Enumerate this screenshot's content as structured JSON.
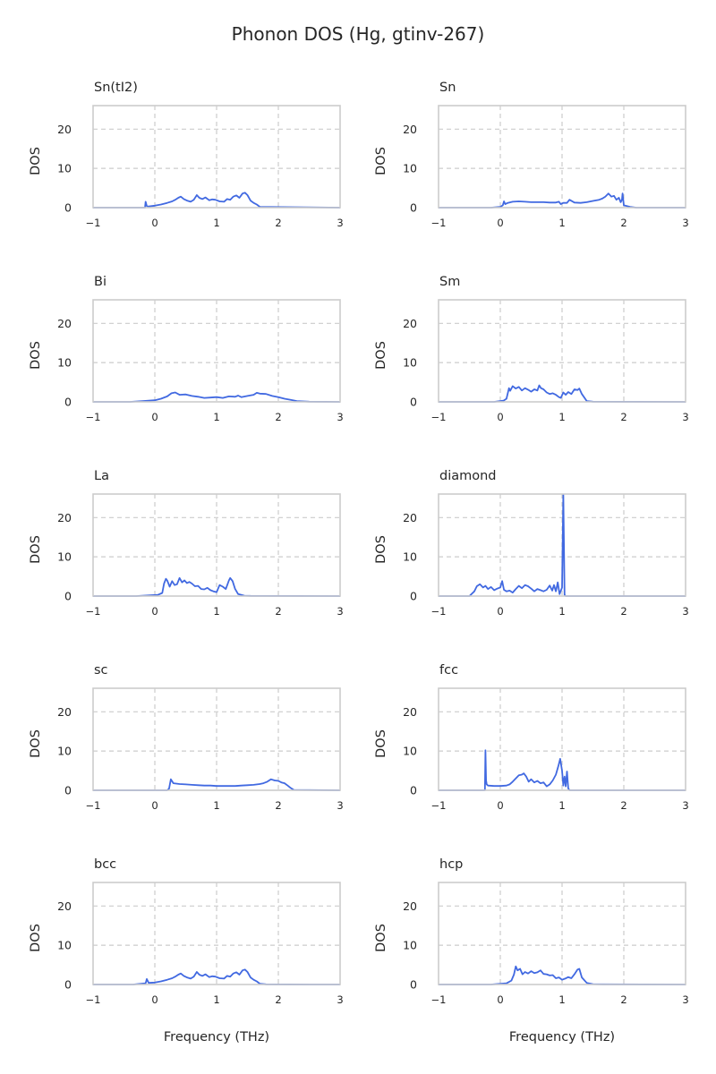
{
  "figure": {
    "title": "Phonon DOS (Hg, gtinv-267)",
    "line_color": "#4169e1",
    "axis_color": "#cccccc",
    "grid_color": "#cccccc",
    "text_color": "#262626"
  },
  "chart_data": [
    {
      "type": "line",
      "title": "Sn(tI2)",
      "xlabel": "",
      "ylabel": "DOS",
      "xlim": [
        -1,
        3
      ],
      "ylim": [
        0,
        26
      ],
      "xticks": [
        "−1",
        "0",
        "1",
        "2",
        "3"
      ],
      "yticks": [
        "0",
        "10",
        "20"
      ],
      "grid": true,
      "series": [
        {
          "x": [
            -1,
            -0.2,
            -0.16,
            -0.15,
            -0.13,
            -0.1,
            0,
            0.1,
            0.2,
            0.28,
            0.33,
            0.38,
            0.42,
            0.47,
            0.52,
            0.58,
            0.63,
            0.68,
            0.72,
            0.77,
            0.82,
            0.88,
            0.93,
            0.98,
            1.05,
            1.12,
            1.17,
            1.22,
            1.27,
            1.32,
            1.37,
            1.42,
            1.46,
            1.5,
            1.55,
            1.6,
            1.65,
            1.7,
            3
          ],
          "y": [
            0,
            0,
            0,
            1.5,
            0.4,
            0.3,
            0.5,
            0.8,
            1.2,
            1.6,
            2.0,
            2.5,
            2.8,
            2.2,
            1.8,
            1.5,
            2.0,
            3.2,
            2.5,
            2.2,
            2.6,
            1.9,
            2.1,
            2.0,
            1.6,
            1.5,
            2.2,
            2.0,
            2.8,
            3.1,
            2.5,
            3.6,
            3.8,
            3.2,
            1.8,
            1.2,
            0.8,
            0.2,
            0
          ]
        }
      ]
    },
    {
      "type": "line",
      "title": "Sn",
      "xlabel": "",
      "ylabel": "DOS",
      "xlim": [
        -1,
        3
      ],
      "ylim": [
        0,
        26
      ],
      "xticks": [
        "−1",
        "0",
        "1",
        "2",
        "3"
      ],
      "yticks": [
        "0",
        "10",
        "20"
      ],
      "grid": true,
      "series": [
        {
          "x": [
            -1,
            -0.15,
            0,
            0.04,
            0.06,
            0.08,
            0.12,
            0.2,
            0.3,
            0.4,
            0.5,
            0.6,
            0.7,
            0.8,
            0.9,
            0.95,
            0.98,
            1.02,
            1.08,
            1.12,
            1.2,
            1.3,
            1.4,
            1.5,
            1.6,
            1.65,
            1.7,
            1.75,
            1.8,
            1.84,
            1.88,
            1.92,
            1.95,
            1.97,
            1.98,
            2.0,
            2.1,
            2.2,
            3
          ],
          "y": [
            0,
            0,
            0.2,
            0.6,
            1.6,
            0.9,
            1.2,
            1.5,
            1.6,
            1.5,
            1.4,
            1.4,
            1.4,
            1.3,
            1.3,
            1.5,
            0.9,
            1.2,
            1.2,
            2.0,
            1.3,
            1.2,
            1.4,
            1.7,
            2.0,
            2.3,
            2.8,
            3.6,
            2.8,
            3.0,
            2.0,
            2.5,
            1.4,
            2.0,
            3.6,
            0.6,
            0.2,
            0,
            0
          ]
        }
      ]
    },
    {
      "type": "line",
      "title": "Bi",
      "xlabel": "",
      "ylabel": "DOS",
      "xlim": [
        -1,
        3
      ],
      "ylim": [
        0,
        26
      ],
      "xticks": [
        "−1",
        "0",
        "1",
        "2",
        "3"
      ],
      "yticks": [
        "0",
        "10",
        "20"
      ],
      "grid": true,
      "series": [
        {
          "x": [
            -1,
            -0.4,
            -0.2,
            0,
            0.1,
            0.2,
            0.27,
            0.33,
            0.4,
            0.5,
            0.6,
            0.7,
            0.8,
            0.9,
            1.0,
            1.1,
            1.2,
            1.3,
            1.35,
            1.4,
            1.5,
            1.6,
            1.65,
            1.7,
            1.8,
            1.9,
            2.0,
            2.1,
            2.2,
            2.3,
            2.5,
            3
          ],
          "y": [
            0,
            0,
            0.2,
            0.4,
            0.8,
            1.4,
            2.2,
            2.4,
            1.8,
            1.9,
            1.5,
            1.3,
            1.0,
            1.1,
            1.2,
            1.0,
            1.4,
            1.3,
            1.6,
            1.2,
            1.5,
            1.8,
            2.3,
            2.1,
            2.0,
            1.5,
            1.2,
            0.8,
            0.5,
            0.2,
            0.05,
            0
          ]
        }
      ]
    },
    {
      "type": "line",
      "title": "Sm",
      "xlabel": "",
      "ylabel": "DOS",
      "xlim": [
        -1,
        3
      ],
      "ylim": [
        0,
        26
      ],
      "xticks": [
        "−1",
        "0",
        "1",
        "2",
        "3"
      ],
      "yticks": [
        "0",
        "10",
        "20"
      ],
      "grid": true,
      "series": [
        {
          "x": [
            -1,
            -0.1,
            0.05,
            0.1,
            0.14,
            0.16,
            0.2,
            0.25,
            0.3,
            0.35,
            0.4,
            0.45,
            0.5,
            0.55,
            0.6,
            0.63,
            0.66,
            0.7,
            0.75,
            0.8,
            0.85,
            0.9,
            0.95,
            0.98,
            1.02,
            1.06,
            1.1,
            1.15,
            1.2,
            1.25,
            1.28,
            1.32,
            1.4,
            1.5,
            3
          ],
          "y": [
            0,
            0,
            0.3,
            0.8,
            3.5,
            2.8,
            4.0,
            3.4,
            3.8,
            2.9,
            3.5,
            3.1,
            2.6,
            3.2,
            2.9,
            4.2,
            3.5,
            3.2,
            2.4,
            2.0,
            2.2,
            1.8,
            1.2,
            1.0,
            2.4,
            1.8,
            2.5,
            2.0,
            3.2,
            3.0,
            3.4,
            2.0,
            0.2,
            0.05,
            0
          ]
        }
      ]
    },
    {
      "type": "line",
      "title": "La",
      "xlabel": "",
      "ylabel": "DOS",
      "xlim": [
        -1,
        3
      ],
      "ylim": [
        0,
        26
      ],
      "xticks": [
        "−1",
        "0",
        "1",
        "2",
        "3"
      ],
      "yticks": [
        "0",
        "10",
        "20"
      ],
      "grid": true,
      "series": [
        {
          "x": [
            -1,
            -0.3,
            0.05,
            0.12,
            0.15,
            0.18,
            0.2,
            0.24,
            0.28,
            0.32,
            0.36,
            0.4,
            0.44,
            0.48,
            0.52,
            0.56,
            0.6,
            0.65,
            0.7,
            0.75,
            0.8,
            0.85,
            0.9,
            0.95,
            1.0,
            1.05,
            1.1,
            1.15,
            1.2,
            1.22,
            1.26,
            1.3,
            1.35,
            1.45,
            1.55,
            3
          ],
          "y": [
            0,
            0,
            0.3,
            0.8,
            3.2,
            4.4,
            4.0,
            2.4,
            3.8,
            2.8,
            3.0,
            4.6,
            3.5,
            4.0,
            3.3,
            3.6,
            3.2,
            2.5,
            2.6,
            1.8,
            1.7,
            2.1,
            1.5,
            1.2,
            1.0,
            2.8,
            2.4,
            1.8,
            4.0,
            4.6,
            3.8,
            1.8,
            0.5,
            0.1,
            0.05,
            0
          ]
        }
      ]
    },
    {
      "type": "line",
      "title": "diamond",
      "xlabel": "",
      "ylabel": "DOS",
      "xlim": [
        -1,
        3
      ],
      "ylim": [
        0,
        26
      ],
      "xticks": [
        "−1",
        "0",
        "1",
        "2",
        "3"
      ],
      "yticks": [
        "0",
        "10",
        "20"
      ],
      "grid": true,
      "series": [
        {
          "x": [
            -1,
            -0.5,
            -0.42,
            -0.38,
            -0.33,
            -0.28,
            -0.24,
            -0.2,
            -0.15,
            -0.1,
            -0.05,
            0,
            0.03,
            0.06,
            0.1,
            0.15,
            0.2,
            0.25,
            0.3,
            0.35,
            0.4,
            0.45,
            0.5,
            0.55,
            0.6,
            0.65,
            0.7,
            0.75,
            0.8,
            0.84,
            0.87,
            0.9,
            0.93,
            0.96,
            1.0,
            1.02,
            1.04,
            1.06,
            3
          ],
          "y": [
            0,
            0,
            1.2,
            2.5,
            3.0,
            2.2,
            2.6,
            1.8,
            2.3,
            1.5,
            1.9,
            2.2,
            3.8,
            1.6,
            1.2,
            1.4,
            0.9,
            1.8,
            2.6,
            2.0,
            2.8,
            2.5,
            1.9,
            1.2,
            1.8,
            1.5,
            1.2,
            1.6,
            2.7,
            1.4,
            2.8,
            1.2,
            3.5,
            0.5,
            2.2,
            25.9,
            0.3,
            0,
            0
          ]
        }
      ]
    },
    {
      "type": "line",
      "title": "sc",
      "xlabel": "",
      "ylabel": "DOS",
      "xlim": [
        -1,
        3
      ],
      "ylim": [
        0,
        26
      ],
      "xticks": [
        "−1",
        "0",
        "1",
        "2",
        "3"
      ],
      "yticks": [
        "0",
        "10",
        "20"
      ],
      "grid": true,
      "series": [
        {
          "x": [
            -1,
            0.2,
            0.23,
            0.26,
            0.3,
            0.4,
            0.5,
            0.6,
            0.7,
            0.8,
            0.9,
            1.0,
            1.1,
            1.2,
            1.3,
            1.4,
            1.5,
            1.6,
            1.7,
            1.76,
            1.82,
            1.88,
            1.94,
            2.0,
            2.05,
            2.1,
            2.15,
            2.2,
            2.25,
            3
          ],
          "y": [
            0,
            0,
            0.4,
            2.8,
            1.8,
            1.6,
            1.5,
            1.4,
            1.3,
            1.2,
            1.2,
            1.1,
            1.1,
            1.1,
            1.1,
            1.2,
            1.3,
            1.4,
            1.6,
            1.8,
            2.2,
            2.8,
            2.5,
            2.4,
            2.0,
            1.8,
            1.2,
            0.6,
            0.1,
            0
          ]
        }
      ]
    },
    {
      "type": "line",
      "title": "fcc",
      "xlabel": "",
      "ylabel": "DOS",
      "xlim": [
        -1,
        3
      ],
      "ylim": [
        0,
        26
      ],
      "xticks": [
        "−1",
        "0",
        "1",
        "2",
        "3"
      ],
      "yticks": [
        "0",
        "10",
        "20"
      ],
      "grid": true,
      "series": [
        {
          "x": [
            -1,
            -0.25,
            -0.24,
            -0.23,
            -0.22,
            -0.2,
            -0.1,
            0,
            0.1,
            0.15,
            0.2,
            0.25,
            0.3,
            0.35,
            0.38,
            0.42,
            0.46,
            0.5,
            0.55,
            0.6,
            0.65,
            0.7,
            0.75,
            0.8,
            0.85,
            0.9,
            0.94,
            0.97,
            1.0,
            1.02,
            1.04,
            1.06,
            1.08,
            1.1,
            1.12,
            3
          ],
          "y": [
            0,
            0,
            10.2,
            2.5,
            1.5,
            1.2,
            1.1,
            1.1,
            1.2,
            1.5,
            2.2,
            3.0,
            3.8,
            4.0,
            4.3,
            3.5,
            2.2,
            2.8,
            2.0,
            2.4,
            1.8,
            2.0,
            1.0,
            1.5,
            2.5,
            4.0,
            6.2,
            8.0,
            5.0,
            1.2,
            3.5,
            1.0,
            4.8,
            0.5,
            0,
            0
          ]
        }
      ]
    },
    {
      "type": "line",
      "title": "bcc",
      "xlabel": "Frequency (THz)",
      "ylabel": "DOS",
      "xlim": [
        -1,
        3
      ],
      "ylim": [
        0,
        26
      ],
      "xticks": [
        "−1",
        "0",
        "1",
        "2",
        "3"
      ],
      "yticks": [
        "0",
        "10",
        "20"
      ],
      "grid": true,
      "series": [
        {
          "x": [
            -1,
            -0.35,
            -0.15,
            -0.13,
            -0.1,
            0,
            0.1,
            0.2,
            0.28,
            0.33,
            0.38,
            0.42,
            0.47,
            0.52,
            0.58,
            0.63,
            0.68,
            0.72,
            0.77,
            0.82,
            0.88,
            0.93,
            0.98,
            1.05,
            1.12,
            1.17,
            1.22,
            1.27,
            1.32,
            1.37,
            1.42,
            1.46,
            1.5,
            1.55,
            1.6,
            1.65,
            1.7,
            1.8,
            2.5,
            3
          ],
          "y": [
            0,
            0,
            0.3,
            1.4,
            0.4,
            0.5,
            0.8,
            1.2,
            1.6,
            2.0,
            2.5,
            2.8,
            2.2,
            1.8,
            1.5,
            2.0,
            3.2,
            2.5,
            2.2,
            2.6,
            1.9,
            2.1,
            2.0,
            1.6,
            1.5,
            2.2,
            2.0,
            2.8,
            3.1,
            2.5,
            3.6,
            3.8,
            3.2,
            1.8,
            1.2,
            0.8,
            0.2,
            0.05,
            0,
            0
          ]
        }
      ]
    },
    {
      "type": "line",
      "title": "hcp",
      "xlabel": "Frequency (THz)",
      "ylabel": "DOS",
      "xlim": [
        -1,
        3
      ],
      "ylim": [
        0,
        26
      ],
      "xticks": [
        "−1",
        "0",
        "1",
        "2",
        "3"
      ],
      "yticks": [
        "0",
        "10",
        "20"
      ],
      "grid": true,
      "series": [
        {
          "x": [
            -1,
            -0.15,
            0.1,
            0.18,
            0.22,
            0.25,
            0.28,
            0.32,
            0.36,
            0.4,
            0.45,
            0.5,
            0.55,
            0.6,
            0.65,
            0.7,
            0.75,
            0.8,
            0.85,
            0.9,
            0.95,
            1.0,
            1.05,
            1.1,
            1.15,
            1.2,
            1.25,
            1.28,
            1.32,
            1.4,
            1.5,
            1.65,
            3
          ],
          "y": [
            0,
            0,
            0.3,
            1.0,
            2.5,
            4.6,
            3.6,
            4.0,
            2.6,
            3.2,
            2.8,
            3.4,
            2.9,
            3.1,
            3.6,
            2.7,
            2.6,
            2.3,
            2.4,
            1.6,
            1.8,
            1.2,
            1.5,
            1.9,
            1.6,
            2.6,
            3.8,
            4.0,
            1.8,
            0.4,
            0.1,
            0.05,
            0
          ]
        }
      ]
    }
  ]
}
